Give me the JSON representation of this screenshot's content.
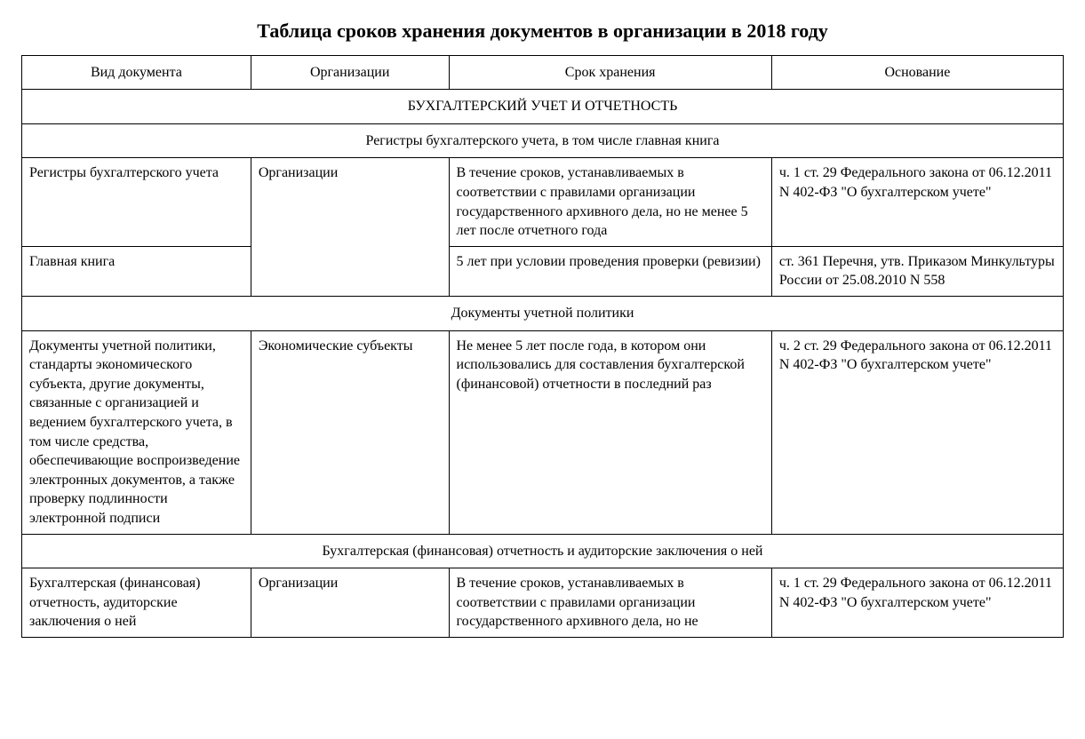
{
  "title": "Таблица сроков хранения документов в организации в 2018 году",
  "columns": [
    "Вид документа",
    "Организации",
    "Срок хранения",
    "Основание"
  ],
  "section1": {
    "header": "БУХГАЛТЕРСКИЙ УЧЕТ И ОТЧЕТНОСТЬ",
    "sub1": {
      "header": "Регистры бухгалтерского учета, в том числе главная книга",
      "row1": {
        "doc": "Регистры бухгалтерского учета",
        "org": "Организации",
        "term": "В течение сроков, устанавливаемых в соответствии с правилами организации государственного архивного дела, но не менее 5 лет после отчетного года",
        "basis": "ч. 1 ст. 29   Федерального закона от 06.12.2011 N 402-ФЗ \"О бухгалтерском учете\""
      },
      "row2": {
        "doc": "Главная книга",
        "term": "5 лет при условии проведения проверки (ревизии)",
        "basis": "ст. 361 Перечня, утв. Приказом Минкультуры России от 25.08.2010 N 558"
      }
    },
    "sub2": {
      "header": "Документы учетной политики",
      "row1": {
        "doc": "Документы учетной политики, стандарты экономического субъекта, другие документы, связанные с организацией и ведением бухгалтерского учета, в том числе средства, обеспечивающие воспроизведение электронных документов, а также проверку подлинности электронной подписи",
        "org": "Экономические субъекты",
        "term": "Не менее 5 лет после года, в котором они использовались для составления бухгалтерской (финансовой) отчетности в последний раз",
        "basis": "ч. 2 ст. 29   Федерального закона от 06.12.2011 N 402-ФЗ \"О бухгалтерском учете\""
      }
    },
    "sub3": {
      "header": "Бухгалтерская (финансовая) отчетность и аудиторские заключения о ней",
      "row1": {
        "doc": "Бухгалтерская (финансовая) отчетность, аудиторские заключения о ней",
        "org": "Организации",
        "term": "В течение сроков, устанавливаемых в соответствии с правилами организации государственного архивного дела, но не",
        "basis": "ч. 1 ст. 29   Федерального закона от 06.12.2011 N 402-ФЗ \"О бухгалтерском учете\""
      }
    }
  }
}
